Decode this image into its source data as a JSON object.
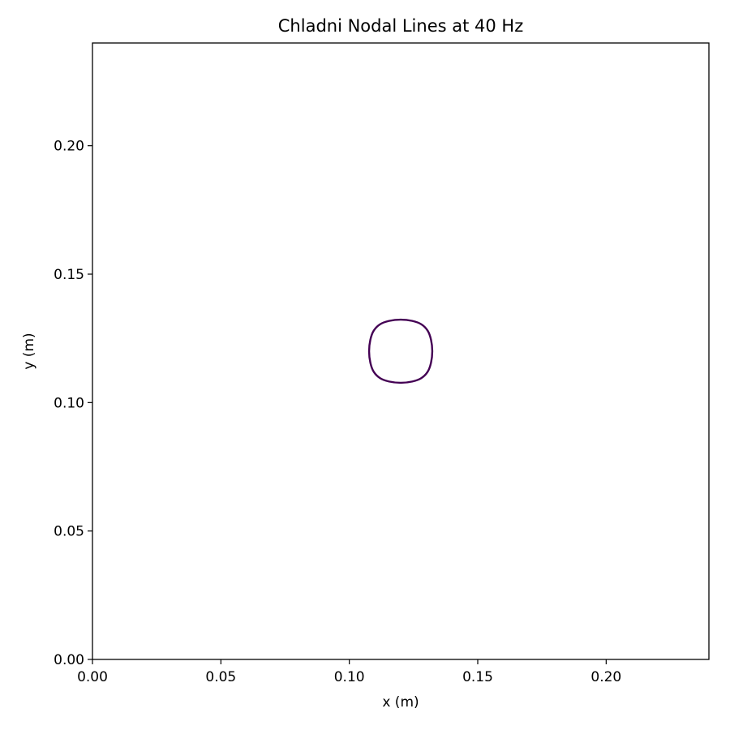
{
  "chart_data": {
    "type": "line",
    "title": "Chladni Nodal Lines at 40 Hz",
    "xlabel": "x (m)",
    "ylabel": "y (m)",
    "xlim": [
      0.0,
      0.24
    ],
    "ylim": [
      0.0,
      0.24
    ],
    "xticks": [
      0.0,
      0.05,
      0.1,
      0.15,
      0.2
    ],
    "yticks": [
      0.0,
      0.05,
      0.1,
      0.15,
      0.2
    ],
    "xtick_labels": [
      "0.00",
      "0.05",
      "0.10",
      "0.15",
      "0.20"
    ],
    "ytick_labels": [
      "0.00",
      "0.05",
      "0.10",
      "0.15",
      "0.20"
    ],
    "grid": false,
    "series": [
      {
        "color": "#440154",
        "closed": true,
        "x": [
          0.12,
          0.1245,
          0.128,
          0.1305,
          0.1318,
          0.1323,
          0.1318,
          0.1305,
          0.128,
          0.1245,
          0.12,
          0.1155,
          0.112,
          0.1095,
          0.1082,
          0.1077,
          0.1082,
          0.1095,
          0.112,
          0.1155
        ],
        "y": [
          0.1323,
          0.1318,
          0.1305,
          0.128,
          0.1245,
          0.12,
          0.1155,
          0.112,
          0.1095,
          0.1082,
          0.1077,
          0.1082,
          0.1095,
          0.112,
          0.1155,
          0.12,
          0.1245,
          0.128,
          0.1305,
          0.1318
        ]
      }
    ]
  }
}
